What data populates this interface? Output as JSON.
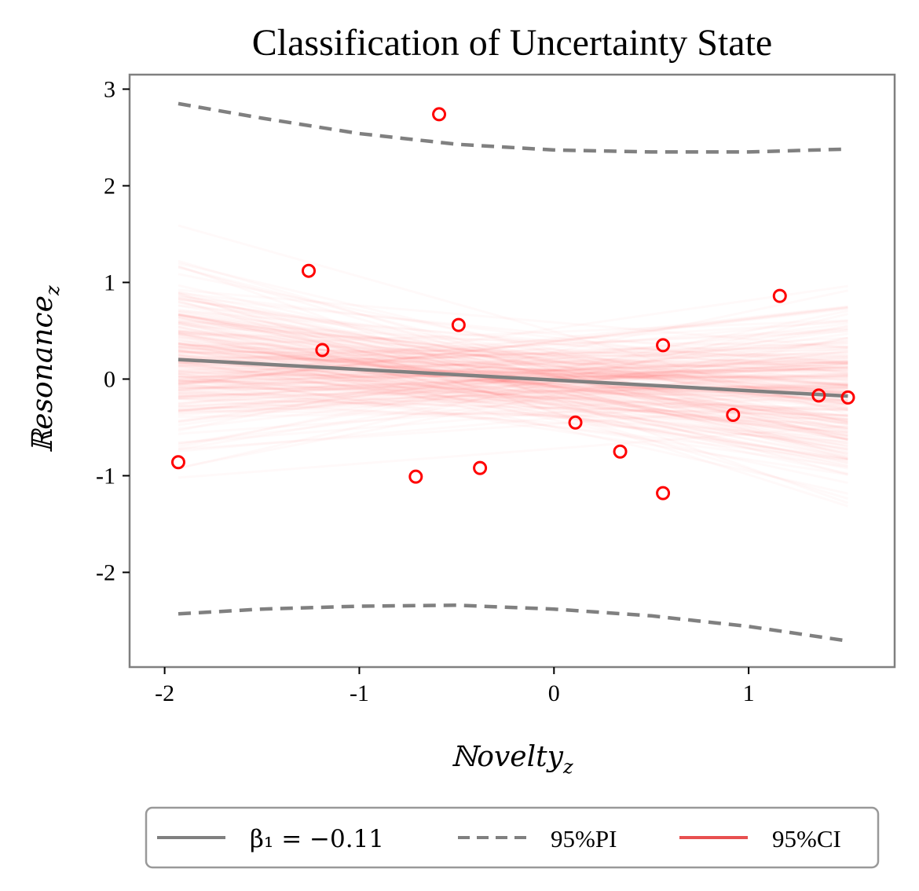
{
  "chart_data": {
    "type": "scatter",
    "title": "Classification of Uncertainty State",
    "xlabel": "ℕovelty",
    "xlabel_sub": "z",
    "ylabel": "ℝesonance",
    "ylabel_sub": "z",
    "xlim": [
      -2.18,
      1.75
    ],
    "ylim": [
      -2.98,
      3.15
    ],
    "x_ticks": [
      -2,
      -1,
      0,
      1
    ],
    "x_tick_labels": [
      "-2",
      "-1",
      "0",
      "1"
    ],
    "y_ticks": [
      -2,
      -1,
      0,
      1,
      2,
      3
    ],
    "y_tick_labels": [
      "-2",
      "-1",
      "0",
      "1",
      "2",
      "3"
    ],
    "points": [
      {
        "x": -1.93,
        "y": -0.86
      },
      {
        "x": -1.26,
        "y": 1.12
      },
      {
        "x": -1.19,
        "y": 0.3
      },
      {
        "x": -0.71,
        "y": -1.01
      },
      {
        "x": -0.59,
        "y": 2.74
      },
      {
        "x": -0.49,
        "y": 0.56
      },
      {
        "x": -0.38,
        "y": -0.92
      },
      {
        "x": 0.11,
        "y": -0.45
      },
      {
        "x": 0.34,
        "y": -0.75
      },
      {
        "x": 0.56,
        "y": 0.35
      },
      {
        "x": 0.56,
        "y": -1.18
      },
      {
        "x": 0.92,
        "y": -0.37
      },
      {
        "x": 1.16,
        "y": 0.86
      },
      {
        "x": 1.36,
        "y": -0.17
      },
      {
        "x": 1.51,
        "y": -0.19
      }
    ],
    "regression": {
      "slope": -0.11,
      "intercept": -0.01,
      "x_range": [
        -1.93,
        1.51
      ]
    },
    "prediction_interval": {
      "x": [
        -1.93,
        -1.5,
        -1.0,
        -0.5,
        0.0,
        0.5,
        1.0,
        1.51
      ],
      "upper": [
        2.85,
        2.7,
        2.54,
        2.43,
        2.37,
        2.35,
        2.35,
        2.38
      ],
      "lower": [
        -2.43,
        -2.38,
        -2.35,
        -2.34,
        -2.38,
        -2.45,
        -2.56,
        -2.71
      ]
    },
    "ci_band": {
      "n_lines": 240,
      "intercept_sd": 0.22,
      "slope_sd": 0.23,
      "color": "#ff0000"
    },
    "colors": {
      "points": "#ff0000",
      "regression": "#808080",
      "ci": "#e85050",
      "axes": "#808080"
    },
    "legend": {
      "position": "bottom-center",
      "entries": [
        {
          "label": "β₁ = −0.11",
          "style": "solid",
          "color": "#808080"
        },
        {
          "label": "95%PI",
          "style": "dashed",
          "color": "#808080"
        },
        {
          "label": "95%CI",
          "style": "solid",
          "color": "#e85050"
        }
      ]
    }
  }
}
